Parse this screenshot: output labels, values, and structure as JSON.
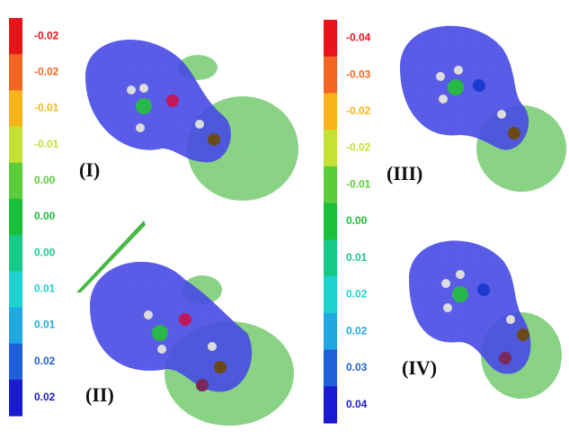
{
  "colorbars": [
    {
      "segments": [
        {
          "label": "-0.02",
          "color": "#e8141c"
        },
        {
          "label": "-0.02",
          "color": "#f26522"
        },
        {
          "label": "-0.01",
          "color": "#f7b41a"
        },
        {
          "label": "-0.01",
          "color": "#c4e234"
        },
        {
          "label": "0.00",
          "color": "#5ccd3a"
        },
        {
          "label": "0.00",
          "color": "#1cbf3a"
        },
        {
          "label": "0.00",
          "color": "#19c98a"
        },
        {
          "label": "0.01",
          "color": "#1ed3cf"
        },
        {
          "label": "0.01",
          "color": "#22a8e0"
        },
        {
          "label": "0.02",
          "color": "#1f5fd8"
        },
        {
          "label": "0.02",
          "color": "#1a1ad0"
        }
      ]
    },
    {
      "segments": [
        {
          "label": "-0.04",
          "color": "#e8141c"
        },
        {
          "label": "-0.03",
          "color": "#f26522"
        },
        {
          "label": "-0.02",
          "color": "#f7b41a"
        },
        {
          "label": "-0.02",
          "color": "#c4e234"
        },
        {
          "label": "-0.01",
          "color": "#5ccd3a"
        },
        {
          "label": "0.00",
          "color": "#1cbf3a"
        },
        {
          "label": "0.01",
          "color": "#19c98a"
        },
        {
          "label": "0.02",
          "color": "#1ed3cf"
        },
        {
          "label": "0.02",
          "color": "#22a8e0"
        },
        {
          "label": "0.03",
          "color": "#1f5fd8"
        },
        {
          "label": "0.04",
          "color": "#1a1ad0"
        }
      ]
    }
  ],
  "panels": [
    "(I)",
    "(II)",
    "(III)",
    "(IV)"
  ]
}
